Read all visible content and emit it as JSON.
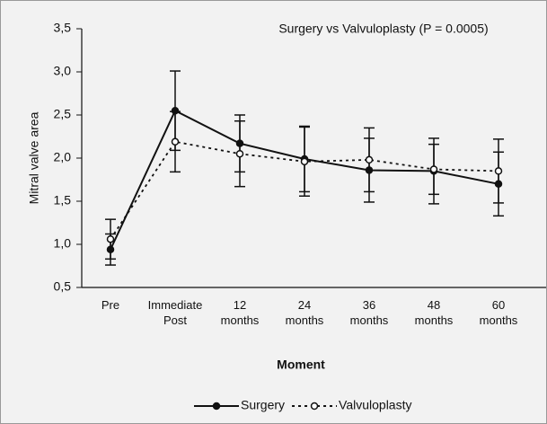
{
  "chart_data": {
    "type": "line",
    "title": "Surgery vs Valvuloplasty (P = 0.0005)",
    "x_label": "Moment",
    "y_label": "Mitral valve area",
    "categories": [
      "Pre",
      "Immediate\nPost",
      "12\nmonths",
      "24\nmonths",
      "36\nmonths",
      "48\nmonths",
      "60\nmonths"
    ],
    "ylim": [
      0.5,
      3.5
    ],
    "yticks": [
      {
        "value": 0.5,
        "label": "0,5"
      },
      {
        "value": 1.0,
        "label": "1,0"
      },
      {
        "value": 1.5,
        "label": "1,5"
      },
      {
        "value": 2.0,
        "label": "2,0"
      },
      {
        "value": 2.5,
        "label": "2,5"
      },
      {
        "value": 3.0,
        "label": "3,0"
      },
      {
        "value": 3.5,
        "label": "3,5"
      }
    ],
    "legend": "bottom",
    "series": [
      {
        "name": "Surgery",
        "color": "#111111",
        "dashed": false,
        "marker_filled": true,
        "values": [
          0.94,
          2.55,
          2.17,
          1.99,
          1.86,
          1.85,
          1.7
        ],
        "errors": [
          0.18,
          0.46,
          0.33,
          0.38,
          0.37,
          0.38,
          0.37
        ]
      },
      {
        "name": "Valvuloplasty",
        "color": "#111111",
        "dashed": true,
        "marker_filled": false,
        "values": [
          1.06,
          2.19,
          2.05,
          1.96,
          1.98,
          1.87,
          1.85
        ],
        "errors": [
          0.23,
          0.35,
          0.38,
          0.4,
          0.37,
          0.29,
          0.37
        ]
      }
    ]
  }
}
